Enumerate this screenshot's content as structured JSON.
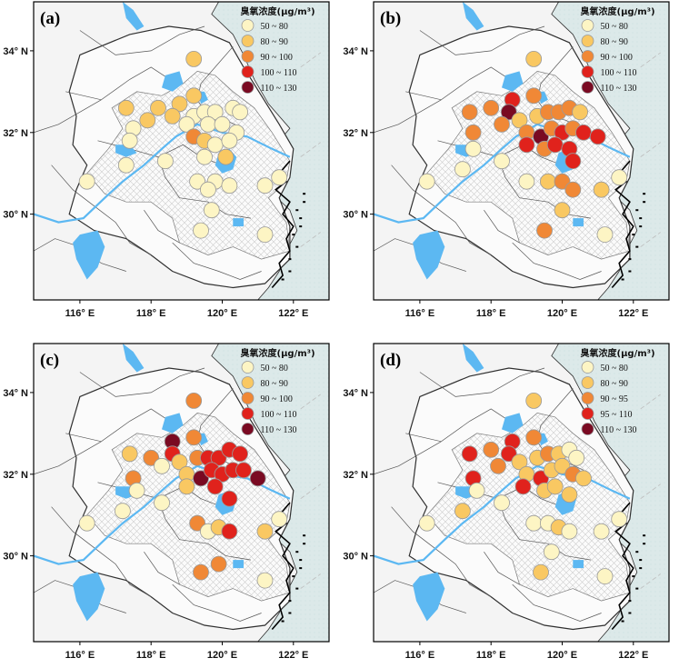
{
  "figure": {
    "y_ticks": [
      "34° N",
      "32° N",
      "30° N"
    ],
    "x_ticks": [
      "116° E",
      "118° E",
      "120° E",
      "122° E"
    ],
    "colors": {
      "sea": "#dce9e9",
      "land_outside": "#f4f4f4",
      "land_region": "#fbfbfb",
      "hatch": "#c8c8c8",
      "water": "#5cb8f2",
      "boundary": "#303030",
      "marker_stroke": "#9a9a9a"
    }
  },
  "panels": [
    {
      "label": "(a)",
      "legend_title": "臭氧浓度(μg/m³)",
      "classes": [
        {
          "text": "50  ~  80",
          "color": "#fdf5c4"
        },
        {
          "text": "80  ~  90",
          "color": "#f9c862"
        },
        {
          "text": "90  ~  100",
          "color": "#f08836"
        },
        {
          "text": "100  ~  110",
          "color": "#e0221c"
        },
        {
          "text": "110  ~  130",
          "color": "#7a0a22"
        }
      ],
      "stations": [
        {
          "lon": 119.2,
          "lat": 33.8,
          "class": 1
        },
        {
          "lon": 117.3,
          "lat": 32.6,
          "class": 1
        },
        {
          "lon": 118.2,
          "lat": 32.6,
          "class": 1
        },
        {
          "lon": 118.8,
          "lat": 32.7,
          "class": 1
        },
        {
          "lon": 119.2,
          "lat": 32.9,
          "class": 1
        },
        {
          "lon": 117.9,
          "lat": 32.3,
          "class": 1
        },
        {
          "lon": 118.6,
          "lat": 32.4,
          "class": 1
        },
        {
          "lon": 117.5,
          "lat": 32.1,
          "class": 0
        },
        {
          "lon": 117.4,
          "lat": 31.8,
          "class": 0
        },
        {
          "lon": 119.2,
          "lat": 32.4,
          "class": 0
        },
        {
          "lon": 119.5,
          "lat": 32.5,
          "class": 0
        },
        {
          "lon": 119.8,
          "lat": 32.5,
          "class": 0
        },
        {
          "lon": 120.3,
          "lat": 32.6,
          "class": 0
        },
        {
          "lon": 120.5,
          "lat": 32.5,
          "class": 0
        },
        {
          "lon": 119.0,
          "lat": 32.2,
          "class": 0
        },
        {
          "lon": 119.6,
          "lat": 32.2,
          "class": 0
        },
        {
          "lon": 120.0,
          "lat": 32.2,
          "class": 0
        },
        {
          "lon": 120.4,
          "lat": 32.0,
          "class": 0
        },
        {
          "lon": 119.2,
          "lat": 31.9,
          "class": 2
        },
        {
          "lon": 119.5,
          "lat": 31.8,
          "class": 1
        },
        {
          "lon": 119.8,
          "lat": 31.7,
          "class": 0
        },
        {
          "lon": 120.2,
          "lat": 31.8,
          "class": 0
        },
        {
          "lon": 119.5,
          "lat": 31.4,
          "class": 0
        },
        {
          "lon": 120.1,
          "lat": 31.4,
          "class": 1
        },
        {
          "lon": 118.4,
          "lat": 31.3,
          "class": 0
        },
        {
          "lon": 117.3,
          "lat": 31.2,
          "class": 0
        },
        {
          "lon": 119.3,
          "lat": 30.8,
          "class": 0
        },
        {
          "lon": 119.8,
          "lat": 30.8,
          "class": 0
        },
        {
          "lon": 120.2,
          "lat": 30.7,
          "class": 0
        },
        {
          "lon": 116.2,
          "lat": 30.8,
          "class": 0
        },
        {
          "lon": 119.6,
          "lat": 30.6,
          "class": 0
        },
        {
          "lon": 121.2,
          "lat": 30.7,
          "class": 0
        },
        {
          "lon": 121.6,
          "lat": 30.9,
          "class": 0
        },
        {
          "lon": 119.7,
          "lat": 30.1,
          "class": 0
        },
        {
          "lon": 119.4,
          "lat": 29.6,
          "class": 0
        },
        {
          "lon": 121.2,
          "lat": 29.5,
          "class": 0
        }
      ]
    },
    {
      "label": "(b)",
      "legend_title": "臭氧浓度(μg/m³)",
      "classes": [
        {
          "text": "50 ~ 80",
          "color": "#fdf5c4"
        },
        {
          "text": "80 ~ 90",
          "color": "#f9c862"
        },
        {
          "text": "90 ~ 100",
          "color": "#f08836"
        },
        {
          "text": "100 ~ 110",
          "color": "#e0221c"
        },
        {
          "text": "110 ~ 130",
          "color": "#7a0a22"
        }
      ],
      "stations": [
        {
          "lon": 119.2,
          "lat": 33.8,
          "class": 1
        },
        {
          "lon": 118.6,
          "lat": 32.8,
          "class": 3
        },
        {
          "lon": 119.2,
          "lat": 32.9,
          "class": 2
        },
        {
          "lon": 117.4,
          "lat": 32.5,
          "class": 2
        },
        {
          "lon": 118.0,
          "lat": 32.6,
          "class": 2
        },
        {
          "lon": 118.5,
          "lat": 32.5,
          "class": 4
        },
        {
          "lon": 118.3,
          "lat": 32.2,
          "class": 2
        },
        {
          "lon": 118.8,
          "lat": 32.3,
          "class": 1
        },
        {
          "lon": 117.5,
          "lat": 32.0,
          "class": 2
        },
        {
          "lon": 119.3,
          "lat": 32.4,
          "class": 1
        },
        {
          "lon": 119.6,
          "lat": 32.5,
          "class": 2
        },
        {
          "lon": 119.9,
          "lat": 32.5,
          "class": 2
        },
        {
          "lon": 120.2,
          "lat": 32.6,
          "class": 2
        },
        {
          "lon": 120.5,
          "lat": 32.5,
          "class": 1
        },
        {
          "lon": 119.0,
          "lat": 32.0,
          "class": 2
        },
        {
          "lon": 119.4,
          "lat": 31.9,
          "class": 4
        },
        {
          "lon": 119.7,
          "lat": 32.1,
          "class": 2
        },
        {
          "lon": 120.0,
          "lat": 32.0,
          "class": 3
        },
        {
          "lon": 120.3,
          "lat": 32.1,
          "class": 2
        },
        {
          "lon": 120.6,
          "lat": 32.0,
          "class": 3
        },
        {
          "lon": 121.0,
          "lat": 31.9,
          "class": 3
        },
        {
          "lon": 119.0,
          "lat": 31.7,
          "class": 3
        },
        {
          "lon": 119.5,
          "lat": 31.6,
          "class": 2
        },
        {
          "lon": 119.8,
          "lat": 31.7,
          "class": 3
        },
        {
          "lon": 120.2,
          "lat": 31.6,
          "class": 3
        },
        {
          "lon": 120.3,
          "lat": 31.3,
          "class": 3
        },
        {
          "lon": 117.5,
          "lat": 31.6,
          "class": 0
        },
        {
          "lon": 118.3,
          "lat": 31.3,
          "class": 0
        },
        {
          "lon": 117.2,
          "lat": 31.1,
          "class": 0
        },
        {
          "lon": 119.0,
          "lat": 30.8,
          "class": 0
        },
        {
          "lon": 119.6,
          "lat": 30.8,
          "class": 1
        },
        {
          "lon": 120.0,
          "lat": 30.8,
          "class": 2
        },
        {
          "lon": 116.2,
          "lat": 30.8,
          "class": 0
        },
        {
          "lon": 120.3,
          "lat": 30.6,
          "class": 2
        },
        {
          "lon": 121.1,
          "lat": 30.6,
          "class": 1
        },
        {
          "lon": 121.6,
          "lat": 30.9,
          "class": 0
        },
        {
          "lon": 120.0,
          "lat": 30.1,
          "class": 1
        },
        {
          "lon": 119.5,
          "lat": 29.6,
          "class": 2
        },
        {
          "lon": 121.2,
          "lat": 29.5,
          "class": 0
        }
      ]
    },
    {
      "label": "(c)",
      "legend_title": "臭氧浓度(μg/m³)",
      "classes": [
        {
          "text": "50  ~  80",
          "color": "#fdf5c4"
        },
        {
          "text": "80  ~  90",
          "color": "#f9c862"
        },
        {
          "text": "90  ~  100",
          "color": "#f08836"
        },
        {
          "text": "100  ~  110",
          "color": "#e0221c"
        },
        {
          "text": "110  ~  130",
          "color": "#7a0a22"
        }
      ],
      "stations": [
        {
          "lon": 119.2,
          "lat": 33.8,
          "class": 2
        },
        {
          "lon": 118.6,
          "lat": 32.8,
          "class": 4
        },
        {
          "lon": 119.2,
          "lat": 32.9,
          "class": 2
        },
        {
          "lon": 117.4,
          "lat": 32.5,
          "class": 1
        },
        {
          "lon": 118.0,
          "lat": 32.4,
          "class": 2
        },
        {
          "lon": 118.6,
          "lat": 32.5,
          "class": 3
        },
        {
          "lon": 118.3,
          "lat": 32.2,
          "class": 0
        },
        {
          "lon": 117.5,
          "lat": 31.9,
          "class": 2
        },
        {
          "lon": 118.8,
          "lat": 32.3,
          "class": 1
        },
        {
          "lon": 119.3,
          "lat": 32.4,
          "class": 2
        },
        {
          "lon": 119.6,
          "lat": 32.4,
          "class": 3
        },
        {
          "lon": 119.9,
          "lat": 32.4,
          "class": 3
        },
        {
          "lon": 120.2,
          "lat": 32.6,
          "class": 3
        },
        {
          "lon": 120.5,
          "lat": 32.5,
          "class": 3
        },
        {
          "lon": 119.0,
          "lat": 32.0,
          "class": 1
        },
        {
          "lon": 119.4,
          "lat": 31.9,
          "class": 4
        },
        {
          "lon": 119.7,
          "lat": 32.1,
          "class": 3
        },
        {
          "lon": 120.0,
          "lat": 32.0,
          "class": 3
        },
        {
          "lon": 120.3,
          "lat": 32.1,
          "class": 3
        },
        {
          "lon": 120.6,
          "lat": 32.1,
          "class": 3
        },
        {
          "lon": 121.0,
          "lat": 31.9,
          "class": 4
        },
        {
          "lon": 119.0,
          "lat": 31.7,
          "class": 1
        },
        {
          "lon": 119.8,
          "lat": 31.7,
          "class": 3
        },
        {
          "lon": 120.2,
          "lat": 31.4,
          "class": 3
        },
        {
          "lon": 117.6,
          "lat": 31.6,
          "class": 0
        },
        {
          "lon": 118.3,
          "lat": 31.3,
          "class": 0
        },
        {
          "lon": 117.2,
          "lat": 31.1,
          "class": 0
        },
        {
          "lon": 119.3,
          "lat": 30.8,
          "class": 2
        },
        {
          "lon": 119.6,
          "lat": 30.6,
          "class": 0
        },
        {
          "lon": 119.9,
          "lat": 30.7,
          "class": 1
        },
        {
          "lon": 116.2,
          "lat": 30.8,
          "class": 0
        },
        {
          "lon": 120.2,
          "lat": 30.6,
          "class": 3
        },
        {
          "lon": 121.2,
          "lat": 30.6,
          "class": 1
        },
        {
          "lon": 121.6,
          "lat": 30.9,
          "class": 0
        },
        {
          "lon": 119.9,
          "lat": 29.8,
          "class": 2
        },
        {
          "lon": 119.4,
          "lat": 29.6,
          "class": 2
        },
        {
          "lon": 121.2,
          "lat": 29.4,
          "class": 0
        }
      ]
    },
    {
      "label": "(d)",
      "legend_title": "臭氧浓度(μg/m³)",
      "classes": [
        {
          "text": "50 ~ 80",
          "color": "#fdf5c4"
        },
        {
          "text": "80 ~ 90",
          "color": "#f9c862"
        },
        {
          "text": "90 ~ 95",
          "color": "#f08836"
        },
        {
          "text": "95 ~ 110",
          "color": "#e0221c"
        },
        {
          "text": "110 ~ 130",
          "color": "#7a0a22"
        }
      ],
      "stations": [
        {
          "lon": 119.2,
          "lat": 33.8,
          "class": 1
        },
        {
          "lon": 118.6,
          "lat": 32.8,
          "class": 3
        },
        {
          "lon": 119.2,
          "lat": 32.9,
          "class": 2
        },
        {
          "lon": 117.4,
          "lat": 32.5,
          "class": 3
        },
        {
          "lon": 118.0,
          "lat": 32.6,
          "class": 2
        },
        {
          "lon": 118.5,
          "lat": 32.5,
          "class": 3
        },
        {
          "lon": 118.2,
          "lat": 32.2,
          "class": 2
        },
        {
          "lon": 118.8,
          "lat": 32.3,
          "class": 1
        },
        {
          "lon": 117.5,
          "lat": 31.9,
          "class": 3
        },
        {
          "lon": 119.3,
          "lat": 32.4,
          "class": 1
        },
        {
          "lon": 119.6,
          "lat": 32.5,
          "class": 2
        },
        {
          "lon": 119.9,
          "lat": 32.5,
          "class": 1
        },
        {
          "lon": 120.2,
          "lat": 32.6,
          "class": 0
        },
        {
          "lon": 120.4,
          "lat": 32.4,
          "class": 0
        },
        {
          "lon": 119.0,
          "lat": 32.0,
          "class": 1
        },
        {
          "lon": 119.4,
          "lat": 31.9,
          "class": 3
        },
        {
          "lon": 119.7,
          "lat": 32.1,
          "class": 1
        },
        {
          "lon": 120.0,
          "lat": 32.2,
          "class": 1
        },
        {
          "lon": 120.3,
          "lat": 32.0,
          "class": 2
        },
        {
          "lon": 120.6,
          "lat": 31.9,
          "class": 1
        },
        {
          "lon": 118.9,
          "lat": 31.7,
          "class": 3
        },
        {
          "lon": 119.5,
          "lat": 31.6,
          "class": 1
        },
        {
          "lon": 119.8,
          "lat": 31.7,
          "class": 1
        },
        {
          "lon": 120.2,
          "lat": 31.5,
          "class": 1
        },
        {
          "lon": 117.6,
          "lat": 31.6,
          "class": 0
        },
        {
          "lon": 118.3,
          "lat": 31.3,
          "class": 0
        },
        {
          "lon": 117.2,
          "lat": 31.1,
          "class": 1
        },
        {
          "lon": 119.2,
          "lat": 30.8,
          "class": 0
        },
        {
          "lon": 119.6,
          "lat": 30.8,
          "class": 0
        },
        {
          "lon": 119.9,
          "lat": 30.7,
          "class": 1
        },
        {
          "lon": 116.2,
          "lat": 30.8,
          "class": 0
        },
        {
          "lon": 120.2,
          "lat": 30.6,
          "class": 0
        },
        {
          "lon": 121.1,
          "lat": 30.6,
          "class": 0
        },
        {
          "lon": 121.6,
          "lat": 30.9,
          "class": 0
        },
        {
          "lon": 119.7,
          "lat": 30.1,
          "class": 0
        },
        {
          "lon": 119.4,
          "lat": 29.6,
          "class": 1
        },
        {
          "lon": 121.2,
          "lat": 29.5,
          "class": 0
        }
      ]
    }
  ]
}
